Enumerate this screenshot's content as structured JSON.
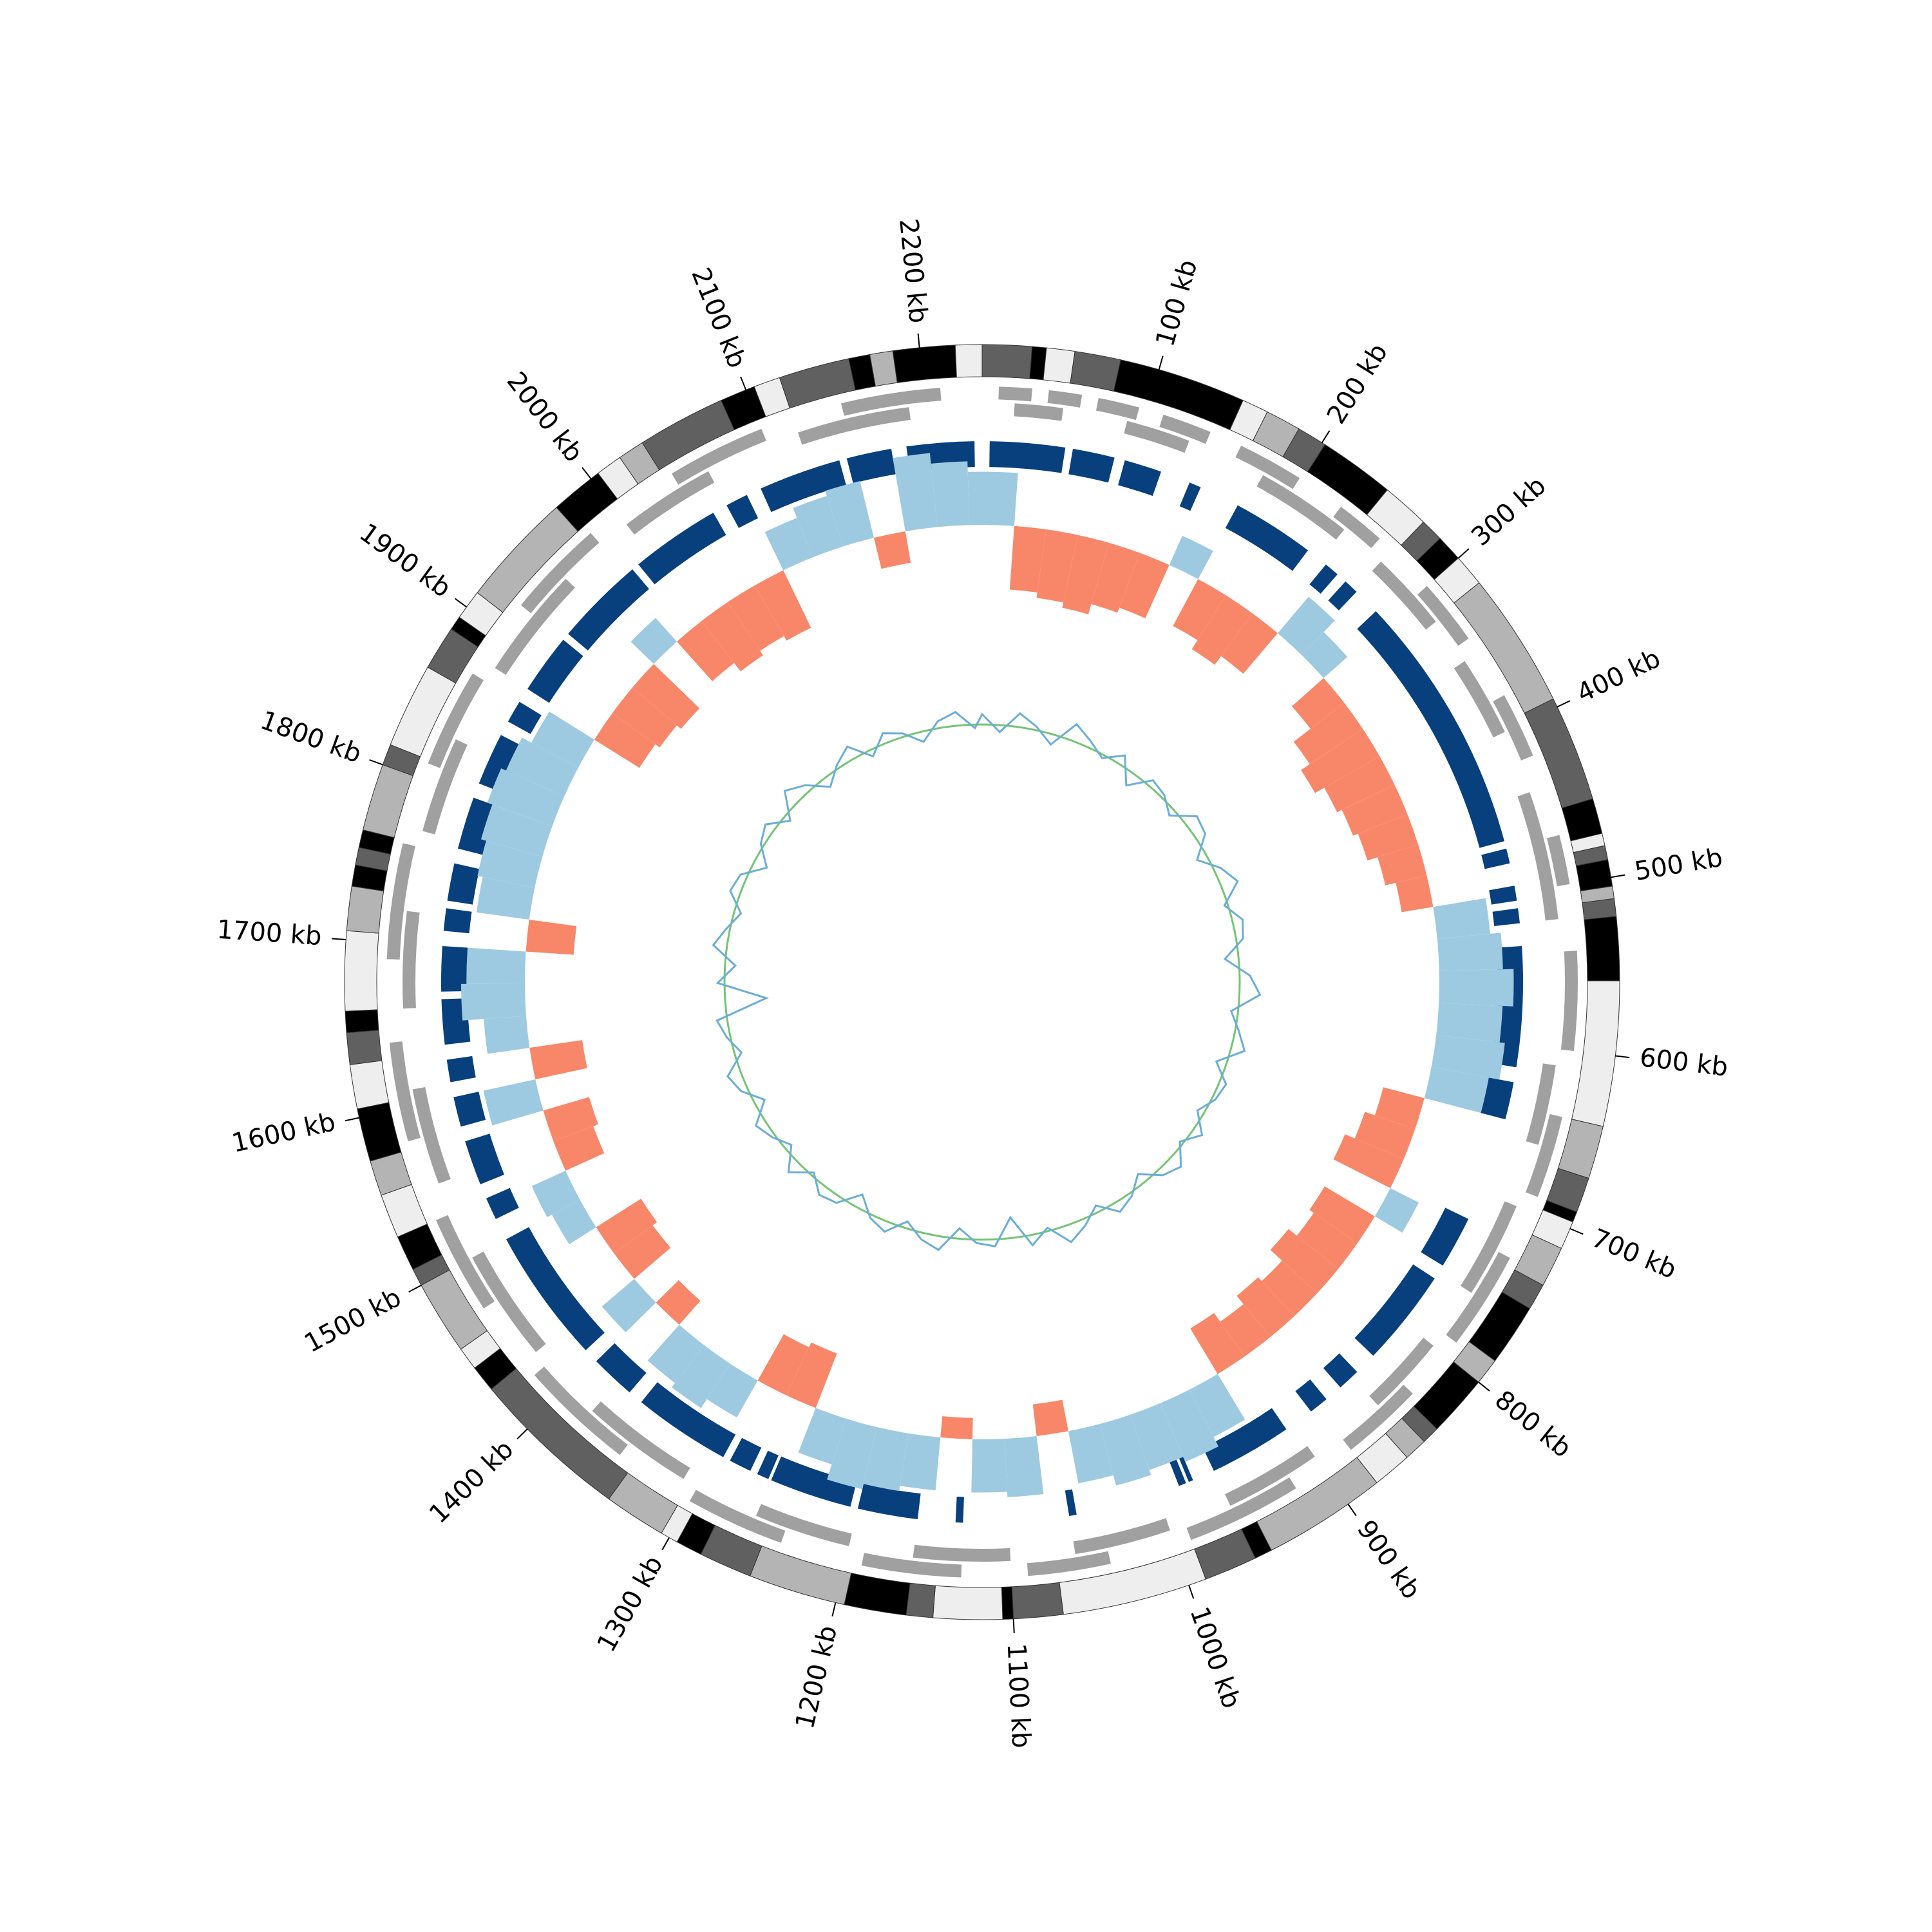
{
  "chart_data": {
    "type": "circular-genome",
    "xlim": [
      0,
      2235
    ],
    "xticks": [
      {
        "value": 100,
        "label": "100 kb"
      },
      {
        "value": 200,
        "label": "200 kb"
      },
      {
        "value": 300,
        "label": "300 kb"
      },
      {
        "value": 400,
        "label": "400 kb"
      },
      {
        "value": 500,
        "label": "500 kb"
      },
      {
        "value": 600,
        "label": "600 kb"
      },
      {
        "value": 700,
        "label": "700 kb"
      },
      {
        "value": 800,
        "label": "800 kb"
      },
      {
        "value": 900,
        "label": "900 kb"
      },
      {
        "value": 1000,
        "label": "1000 kb"
      },
      {
        "value": 1100,
        "label": "1100 kb"
      },
      {
        "value": 1200,
        "label": "1200 kb"
      },
      {
        "value": 1300,
        "label": "1300 kb"
      },
      {
        "value": 1400,
        "label": "1400 kb"
      },
      {
        "value": 1500,
        "label": "1500 kb"
      },
      {
        "value": 1600,
        "label": "1600 kb"
      },
      {
        "value": 1700,
        "label": "1700 kb"
      },
      {
        "value": 1800,
        "label": "1800 kb"
      },
      {
        "value": 1900,
        "label": "1900 kb"
      },
      {
        "value": 2000,
        "label": "2000 kb"
      },
      {
        "value": 2100,
        "label": "2100 kb"
      },
      {
        "value": 2200,
        "label": "2200 kb"
      }
    ],
    "bands": [
      {
        "start": 0,
        "end": 28,
        "color": "#606060"
      },
      {
        "start": 28,
        "end": 36,
        "color": "#000000"
      },
      {
        "start": 36,
        "end": 52,
        "color": "#eeeeee"
      },
      {
        "start": 52,
        "end": 78,
        "color": "#606060"
      },
      {
        "start": 78,
        "end": 150,
        "color": "#000000"
      },
      {
        "start": 150,
        "end": 165,
        "color": "#eeeeee"
      },
      {
        "start": 165,
        "end": 185,
        "color": "#b4b4b4"
      },
      {
        "start": 185,
        "end": 202,
        "color": "#606060"
      },
      {
        "start": 202,
        "end": 245,
        "color": "#000000"
      },
      {
        "start": 245,
        "end": 272,
        "color": "#eeeeee"
      },
      {
        "start": 272,
        "end": 285,
        "color": "#606060"
      },
      {
        "start": 285,
        "end": 300,
        "color": "#000000"
      },
      {
        "start": 300,
        "end": 318,
        "color": "#eeeeee"
      },
      {
        "start": 318,
        "end": 395,
        "color": "#b4b4b4"
      },
      {
        "start": 395,
        "end": 455,
        "color": "#606060"
      },
      {
        "start": 455,
        "end": 475,
        "color": "#000000"
      },
      {
        "start": 475,
        "end": 482,
        "color": "#eeeeee"
      },
      {
        "start": 482,
        "end": 490,
        "color": "#606060"
      },
      {
        "start": 490,
        "end": 505,
        "color": "#000000"
      },
      {
        "start": 505,
        "end": 512,
        "color": "#b4b4b4"
      },
      {
        "start": 512,
        "end": 522,
        "color": "#606060"
      },
      {
        "start": 522,
        "end": 558,
        "color": "#000000"
      },
      {
        "start": 558,
        "end": 640,
        "color": "#eeeeee"
      },
      {
        "start": 640,
        "end": 670,
        "color": "#b4b4b4"
      },
      {
        "start": 670,
        "end": 690,
        "color": "#606060"
      },
      {
        "start": 690,
        "end": 696,
        "color": "#000000"
      },
      {
        "start": 696,
        "end": 712,
        "color": "#eeeeee"
      },
      {
        "start": 712,
        "end": 735,
        "color": "#b4b4b4"
      },
      {
        "start": 735,
        "end": 750,
        "color": "#606060"
      },
      {
        "start": 750,
        "end": 785,
        "color": "#000000"
      },
      {
        "start": 785,
        "end": 800,
        "color": "#b4b4b4"
      },
      {
        "start": 800,
        "end": 835,
        "color": "#000000"
      },
      {
        "start": 835,
        "end": 845,
        "color": "#606060"
      },
      {
        "start": 845,
        "end": 858,
        "color": "#b4b4b4"
      },
      {
        "start": 858,
        "end": 880,
        "color": "#eeeeee"
      },
      {
        "start": 880,
        "end": 950,
        "color": "#b4b4b4"
      },
      {
        "start": 950,
        "end": 960,
        "color": "#000000"
      },
      {
        "start": 960,
        "end": 990,
        "color": "#606060"
      },
      {
        "start": 990,
        "end": 1072,
        "color": "#eeeeee"
      },
      {
        "start": 1072,
        "end": 1100,
        "color": "#606060"
      },
      {
        "start": 1100,
        "end": 1106,
        "color": "#000000"
      },
      {
        "start": 1106,
        "end": 1145,
        "color": "#eeeeee"
      },
      {
        "start": 1145,
        "end": 1160,
        "color": "#606060"
      },
      {
        "start": 1160,
        "end": 1195,
        "color": "#000000"
      },
      {
        "start": 1195,
        "end": 1250,
        "color": "#b4b4b4"
      },
      {
        "start": 1250,
        "end": 1280,
        "color": "#606060"
      },
      {
        "start": 1280,
        "end": 1295,
        "color": "#000000"
      },
      {
        "start": 1295,
        "end": 1305,
        "color": "#eeeeee"
      },
      {
        "start": 1305,
        "end": 1340,
        "color": "#b4b4b4"
      },
      {
        "start": 1340,
        "end": 1430,
        "color": "#606060"
      },
      {
        "start": 1430,
        "end": 1445,
        "color": "#000000"
      },
      {
        "start": 1445,
        "end": 1458,
        "color": "#eeeeee"
      },
      {
        "start": 1458,
        "end": 1500,
        "color": "#b4b4b4"
      },
      {
        "start": 1500,
        "end": 1510,
        "color": "#606060"
      },
      {
        "start": 1510,
        "end": 1530,
        "color": "#000000"
      },
      {
        "start": 1530,
        "end": 1555,
        "color": "#eeeeee"
      },
      {
        "start": 1555,
        "end": 1575,
        "color": "#b4b4b4"
      },
      {
        "start": 1575,
        "end": 1605,
        "color": "#000000"
      },
      {
        "start": 1605,
        "end": 1630,
        "color": "#eeeeee"
      },
      {
        "start": 1630,
        "end": 1648,
        "color": "#606060"
      },
      {
        "start": 1648,
        "end": 1660,
        "color": "#000000"
      },
      {
        "start": 1660,
        "end": 1705,
        "color": "#eeeeee"
      },
      {
        "start": 1705,
        "end": 1730,
        "color": "#b4b4b4"
      },
      {
        "start": 1730,
        "end": 1742,
        "color": "#000000"
      },
      {
        "start": 1742,
        "end": 1752,
        "color": "#606060"
      },
      {
        "start": 1752,
        "end": 1762,
        "color": "#000000"
      },
      {
        "start": 1762,
        "end": 1800,
        "color": "#b4b4b4"
      },
      {
        "start": 1800,
        "end": 1812,
        "color": "#606060"
      },
      {
        "start": 1812,
        "end": 1860,
        "color": "#eeeeee"
      },
      {
        "start": 1860,
        "end": 1885,
        "color": "#606060"
      },
      {
        "start": 1885,
        "end": 1893,
        "color": "#000000"
      },
      {
        "start": 1893,
        "end": 1910,
        "color": "#eeeeee"
      },
      {
        "start": 1910,
        "end": 1975,
        "color": "#b4b4b4"
      },
      {
        "start": 1975,
        "end": 2005,
        "color": "#000000"
      },
      {
        "start": 2005,
        "end": 2020,
        "color": "#eeeeee"
      },
      {
        "start": 2020,
        "end": 2035,
        "color": "#b4b4b4"
      },
      {
        "start": 2035,
        "end": 2085,
        "color": "#606060"
      },
      {
        "start": 2085,
        "end": 2105,
        "color": "#000000"
      },
      {
        "start": 2105,
        "end": 2120,
        "color": "#eeeeee"
      },
      {
        "start": 2120,
        "end": 2160,
        "color": "#606060"
      },
      {
        "start": 2160,
        "end": 2172,
        "color": "#000000"
      },
      {
        "start": 2172,
        "end": 2185,
        "color": "#b4b4b4"
      },
      {
        "start": 2185,
        "end": 2220,
        "color": "#000000"
      },
      {
        "start": 2220,
        "end": 2235,
        "color": "#eeeeee"
      }
    ],
    "gene_color": "#a0a0a0",
    "genes": [
      {
        "start": 10,
        "end": 30,
        "strand": 1
      },
      {
        "start": 40,
        "end": 60,
        "strand": 1
      },
      {
        "start": 70,
        "end": 95,
        "strand": 1
      },
      {
        "start": 110,
        "end": 140,
        "strand": 1
      },
      {
        "start": 160,
        "end": 200,
        "strand": 1
      },
      {
        "start": 230,
        "end": 260,
        "strand": 1
      },
      {
        "start": 300,
        "end": 340,
        "strand": 1
      },
      {
        "start": 380,
        "end": 420,
        "strand": 1
      },
      {
        "start": 470,
        "end": 500,
        "strand": 1
      },
      {
        "start": 540,
        "end": 600,
        "strand": 1
      },
      {
        "start": 640,
        "end": 690,
        "strand": 1
      },
      {
        "start": 730,
        "end": 790,
        "strand": 1
      },
      {
        "start": 830,
        "end": 880,
        "strand": 1
      },
      {
        "start": 920,
        "end": 990,
        "strand": 1
      },
      {
        "start": 1040,
        "end": 1090,
        "strand": 1
      },
      {
        "start": 1130,
        "end": 1190,
        "strand": 1
      },
      {
        "start": 1240,
        "end": 1300,
        "strand": 1
      },
      {
        "start": 1350,
        "end": 1420,
        "strand": 1
      },
      {
        "start": 1470,
        "end": 1530,
        "strand": 1
      },
      {
        "start": 1580,
        "end": 1640,
        "strand": 1
      },
      {
        "start": 1690,
        "end": 1760,
        "strand": 1
      },
      {
        "start": 1810,
        "end": 1870,
        "strand": 1
      },
      {
        "start": 1920,
        "end": 1980,
        "strand": 1
      },
      {
        "start": 2040,
        "end": 2100,
        "strand": 1
      },
      {
        "start": 2150,
        "end": 2210,
        "strand": 1
      },
      {
        "start": 20,
        "end": 50,
        "strand": -1
      },
      {
        "start": 90,
        "end": 130,
        "strand": -1
      },
      {
        "start": 180,
        "end": 240,
        "strand": -1
      },
      {
        "start": 270,
        "end": 320,
        "strand": -1
      },
      {
        "start": 350,
        "end": 400,
        "strand": -1
      },
      {
        "start": 440,
        "end": 520,
        "strand": -1
      },
      {
        "start": 610,
        "end": 660,
        "strand": -1
      },
      {
        "start": 700,
        "end": 760,
        "strand": -1
      },
      {
        "start": 800,
        "end": 850,
        "strand": -1
      },
      {
        "start": 900,
        "end": 960,
        "strand": -1
      },
      {
        "start": 1000,
        "end": 1060,
        "strand": -1
      },
      {
        "start": 1100,
        "end": 1160,
        "strand": -1
      },
      {
        "start": 1200,
        "end": 1260,
        "strand": -1
      },
      {
        "start": 1310,
        "end": 1380,
        "strand": -1
      },
      {
        "start": 1430,
        "end": 1500,
        "strand": -1
      },
      {
        "start": 1550,
        "end": 1610,
        "strand": -1
      },
      {
        "start": 1660,
        "end": 1720,
        "strand": -1
      },
      {
        "start": 1770,
        "end": 1830,
        "strand": -1
      },
      {
        "start": 1880,
        "end": 1950,
        "strand": -1
      },
      {
        "start": 2000,
        "end": 2060,
        "strand": -1
      },
      {
        "start": 2120,
        "end": 2190,
        "strand": -1
      }
    ],
    "block_color": "#08407e",
    "blocks": [
      {
        "start": 5,
        "end": 55
      },
      {
        "start": 60,
        "end": 88
      },
      {
        "start": 95,
        "end": 120
      },
      {
        "start": 140,
        "end": 148
      },
      {
        "start": 175,
        "end": 230
      },
      {
        "start": 245,
        "end": 255
      },
      {
        "start": 262,
        "end": 272
      },
      {
        "start": 290,
        "end": 465
      },
      {
        "start": 470,
        "end": 480
      },
      {
        "start": 495,
        "end": 505
      },
      {
        "start": 510,
        "end": 520
      },
      {
        "start": 535,
        "end": 615
      },
      {
        "start": 625,
        "end": 650
      },
      {
        "start": 720,
        "end": 755
      },
      {
        "start": 765,
        "end": 830
      },
      {
        "start": 845,
        "end": 860
      },
      {
        "start": 872,
        "end": 885
      },
      {
        "start": 905,
        "end": 960
      },
      {
        "start": 975,
        "end": 978
      },
      {
        "start": 980,
        "end": 985
      },
      {
        "start": 1055,
        "end": 1060
      },
      {
        "start": 1130,
        "end": 1135
      },
      {
        "start": 1160,
        "end": 1200
      },
      {
        "start": 1205,
        "end": 1260
      },
      {
        "start": 1262,
        "end": 1270
      },
      {
        "start": 1275,
        "end": 1290
      },
      {
        "start": 1295,
        "end": 1360
      },
      {
        "start": 1370,
        "end": 1400
      },
      {
        "start": 1410,
        "end": 1500
      },
      {
        "start": 1515,
        "end": 1530
      },
      {
        "start": 1540,
        "end": 1570
      },
      {
        "start": 1580,
        "end": 1600
      },
      {
        "start": 1610,
        "end": 1625
      },
      {
        "start": 1635,
        "end": 1665
      },
      {
        "start": 1670,
        "end": 1700
      },
      {
        "start": 1710,
        "end": 1725
      },
      {
        "start": 1730,
        "end": 1755
      },
      {
        "start": 1765,
        "end": 1800
      },
      {
        "start": 1810,
        "end": 1845
      },
      {
        "start": 1855,
        "end": 1870
      },
      {
        "start": 1880,
        "end": 1920
      },
      {
        "start": 1925,
        "end": 1985
      },
      {
        "start": 1990,
        "end": 2050
      },
      {
        "start": 2060,
        "end": 2075
      },
      {
        "start": 2085,
        "end": 2140
      },
      {
        "start": 2145,
        "end": 2175
      },
      {
        "start": 2185,
        "end": 2230
      }
    ],
    "x": [
      0,
      25,
      50,
      75,
      100,
      125,
      150,
      175,
      200,
      225,
      250,
      275,
      300,
      325,
      350,
      375,
      400,
      425,
      450,
      475,
      500,
      525,
      550,
      575,
      600,
      625,
      650,
      675,
      700,
      725,
      750,
      775,
      800,
      825,
      850,
      875,
      900,
      925,
      950,
      975,
      1000,
      1025,
      1050,
      1075,
      1100,
      1125,
      1150,
      1175,
      1200,
      1225,
      1250,
      1275,
      1300,
      1325,
      1350,
      1375,
      1400,
      1425,
      1450,
      1475,
      1500,
      1525,
      1550,
      1575,
      1600,
      1625,
      1650,
      1675,
      1700,
      1725,
      1750,
      1775,
      1800,
      1825,
      1850,
      1875,
      1900,
      1925,
      1950,
      1975,
      2000,
      2025,
      2050,
      2075,
      2100,
      2125,
      2150,
      2175,
      2200,
      2225
    ],
    "skew_ylim": [
      -1,
      1
    ],
    "skew_positive_color": "#f8876a",
    "skew_negative_color": "#9ecae1",
    "skew_values": [
      -0.5,
      0.6,
      0.65,
      0.7,
      0.6,
      0.55,
      -0.3,
      0.5,
      0.6,
      0.5,
      -0.45,
      -0.3,
      0.4,
      0.6,
      0.7,
      0.6,
      0.55,
      0.5,
      0.4,
      0.3,
      -0.5,
      -0.6,
      -0.7,
      -0.6,
      -0.65,
      -0.55,
      0.4,
      0.5,
      0.6,
      -0.3,
      0.55,
      0.5,
      0.6,
      0.45,
      0.5,
      0.4,
      0.5,
      -0.5,
      -0.6,
      -0.55,
      -0.6,
      -0.5,
      0.3,
      -0.55,
      -0.5,
      0.2,
      -0.5,
      -0.55,
      -0.6,
      -0.45,
      0.55,
      0.5,
      -0.4,
      -0.5,
      -0.45,
      0.3,
      -0.4,
      0.45,
      0.5,
      -0.3,
      -0.35,
      0.4,
      0.45,
      -0.5,
      0.5,
      -0.4,
      -0.6,
      -0.55,
      0.45,
      -0.5,
      -0.55,
      -0.6,
      -0.65,
      -0.6,
      -0.5,
      0.5,
      0.55,
      0.6,
      -0.3,
      0.5,
      0.6,
      0.55,
      0.6,
      -0.4,
      -0.5,
      -0.55,
      0.3,
      -0.7,
      -0.6,
      -0.5
    ],
    "gc_ylim": [
      -1.5,
      1.5
    ],
    "gc_color": "#6baed6",
    "gc_baseline_color": "#74c476",
    "gc_values": [
      0.3,
      -0.2,
      0.4,
      0.1,
      -0.3,
      0.5,
      0.2,
      -0.1,
      0.3,
      -0.4,
      0.2,
      0.1,
      -0.2,
      0.4,
      0.3,
      -0.3,
      0.2,
      0.5,
      -0.1,
      0.3,
      0.2,
      -0.4,
      0.3,
      0.6,
      -0.2,
      0.1,
      0.4,
      -0.3,
      0.2,
      0.1,
      -0.2,
      0.3,
      -0.1,
      0.4,
      0.2,
      -0.3,
      0.1,
      0.3,
      -0.2,
      0.2,
      0.5,
      -0.1,
      0.3,
      -0.6,
      0.2,
      0.1,
      -0.3,
      0.4,
      0.2,
      -0.2,
      0.3,
      0.1,
      -0.4,
      0.2,
      0.3,
      -0.1,
      0.4,
      -0.2,
      0.1,
      0.3,
      -0.3,
      0.2,
      0.4,
      -0.2,
      0.1,
      0.3,
      -1.2,
      0.2,
      -0.3,
      0.4,
      0.1,
      -0.2,
      0.3,
      0.2,
      -0.4,
      0.1,
      0.3,
      -0.2,
      0.5,
      0.2,
      -0.3,
      0.1,
      0.4,
      -0.2,
      0.3,
      0.1,
      -0.3,
      0.2,
      0.4,
      -0.1
    ]
  }
}
